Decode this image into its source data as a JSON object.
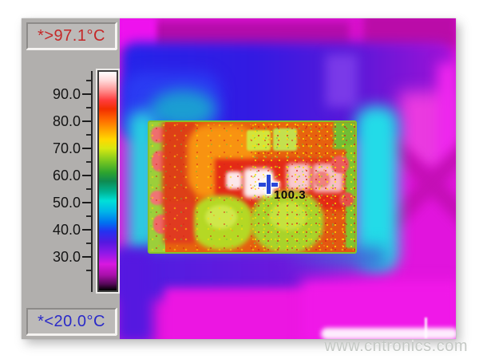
{
  "overlays": {
    "max_label": "*>97.1°C",
    "min_label": "*<20.0°C"
  },
  "scale": {
    "ticks": [
      "90.0",
      "80.0",
      "70.0",
      "60.0",
      "50.0",
      "40.0",
      "30.0"
    ],
    "unit": "°C",
    "over_range_color": "#c52727",
    "under_range_color": "#2a2ac8",
    "gradient_css": "background-image: linear-gradient(180deg, #ffffff 0%, #ffd9d9 4%, #ff9a9a 8%, #ff3c3c 13%, #f22e00 17%, #ff6a00 22%, #ff9c00 26%, #ffd800 31%, #d8e810 35%, #86cc1e 40%, #2ea42e 46%, #0f8a50 50%, #00b494 55%, #00e0d8 59%, #00b4e8 64%, #0072f0 69%, #2432f0 73%, #5418e0 78%, #9018e8 83%, #d818e0 88%, #a810aa 93%, #57085a 97%, #000000 100%)"
  },
  "measurement": {
    "spot_value": "100.3",
    "max_temp": "97.1",
    "min_temp": "20.0"
  },
  "watermark": {
    "text": "www.cntronics.com"
  },
  "colors": {
    "panel_gray": "#b1afad",
    "thermal_base_magenta": "#e114dd",
    "pcb_hot_orange": "#e8660d",
    "glow_cyan": "#23dbe8"
  }
}
